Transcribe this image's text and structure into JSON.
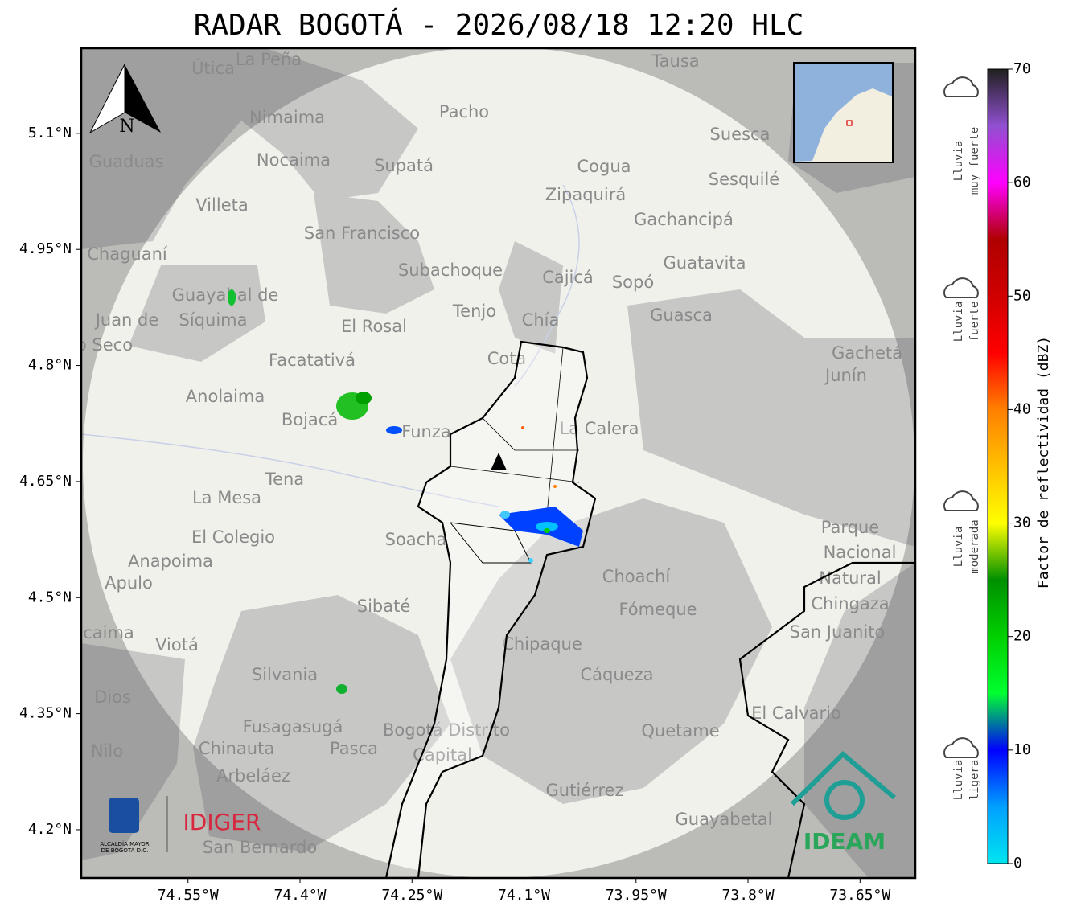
{
  "chart_data": {
    "type": "radar-map",
    "title": "RADAR BOGOTÁ - 2026/08/18 12:20 HLC",
    "xlim": [
      -74.693,
      -73.576
    ],
    "ylim": [
      4.1376,
      5.21
    ],
    "xticks": [
      {
        "value": -74.55,
        "label": "74.55°W"
      },
      {
        "value": -74.4,
        "label": "74.4°W"
      },
      {
        "value": -74.25,
        "label": "74.25°W"
      },
      {
        "value": -74.1,
        "label": "74.1°W"
      },
      {
        "value": -73.95,
        "label": "73.95°W"
      },
      {
        "value": -73.8,
        "label": "73.8°W"
      },
      {
        "value": -73.65,
        "label": "73.65°W"
      }
    ],
    "yticks": [
      {
        "value": 5.1,
        "label": "5.1°N"
      },
      {
        "value": 4.95,
        "label": "4.95°N"
      },
      {
        "value": 4.8,
        "label": "4.8°N"
      },
      {
        "value": 4.65,
        "label": "4.65°N"
      },
      {
        "value": 4.5,
        "label": "4.5°N"
      },
      {
        "value": 4.35,
        "label": "4.35°N"
      },
      {
        "value": 4.2,
        "label": "4.2°N"
      }
    ],
    "grid": true,
    "colorbar": {
      "label": "Factor de reflectividad (dBZ)",
      "lim": [
        0,
        70
      ],
      "ticks": [
        0,
        10,
        20,
        30,
        40,
        50,
        60,
        70
      ],
      "colors": [
        "#00e5f0",
        "#00a0ff",
        "#0000ff",
        "#00ff30",
        "#00d000",
        "#009000",
        "#ffff00",
        "#ffc000",
        "#ff8000",
        "#ff0000",
        "#d00000",
        "#b00000",
        "#ff00ff",
        "#9050d0",
        "#202020"
      ]
    },
    "intensity_labels": [
      [
        "Lluvia",
        "muy fuerte"
      ],
      [
        "Lluvia",
        "fuerte"
      ],
      [
        "Lluvia",
        "moderada"
      ],
      [
        "Lluvia",
        "ligera"
      ]
    ],
    "north": "N",
    "places": [
      "La Peña",
      "Útica",
      "Tausa",
      "Pacho",
      "Nimaima",
      "Guaduas",
      "Nocaima",
      "Supatá",
      "Suesca",
      "Cogua",
      "Sesquilé",
      "Zipaquirá",
      "Villeta",
      "Gachancipá",
      "San Francisco",
      "Chaguaní",
      "Guatavita",
      "Subachoque",
      "Cajicá",
      "Sopó",
      "Guayabal de",
      "Síquima",
      "Juan de",
      "o Seco",
      "Tenjo",
      "Guasca",
      "Chía",
      "El Rosal",
      "Facatativá",
      "Cota",
      "Gachetá",
      "Junín",
      "Anolaima",
      "Bojacá",
      "Funza",
      "La Calera",
      "Tena",
      "La Mesa",
      "Parque",
      "Nacional",
      "Natural",
      "Chingaza",
      "El Colegio",
      "Soacha",
      "Anapoima",
      "Apulo",
      "Choachí",
      "Sibaté",
      "Fómeque",
      "San Juanito",
      "caima",
      "Viotá",
      "Chipaque",
      "Cáqueza",
      "Silvania",
      "Dios",
      "El Calvario",
      "Fusagasugá",
      "Bogotá Distrito",
      "Capital",
      "Quetame",
      "Nilo",
      "Chinauta",
      "Pasca",
      "Arbeláez",
      "Gutiérrez",
      "Guayabetal",
      "San Bernardo"
    ],
    "logos": {
      "alcaldia": [
        "ALCALDÍA MAYOR",
        "DE BOGOTÁ D.C."
      ],
      "idiger": "IDIGER",
      "ideam": "IDEAM"
    }
  }
}
